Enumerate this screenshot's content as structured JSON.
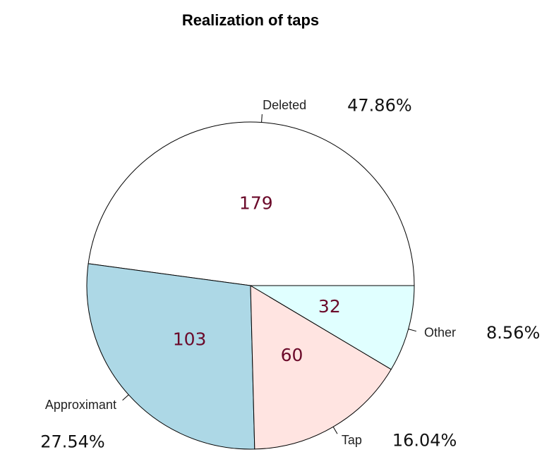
{
  "chart_data": {
    "type": "pie",
    "title": "Realization of taps",
    "categories": [
      "Deleted",
      "Approximant",
      "Tap",
      "Other"
    ],
    "values": [
      179,
      103,
      60,
      32
    ],
    "percent_labels": [
      "47.86%",
      "27.54%",
      "16.04%",
      "8.56%"
    ],
    "colors": [
      "#ffffff",
      "#add8e6",
      "#ffe4e1",
      "#e0ffff"
    ]
  }
}
